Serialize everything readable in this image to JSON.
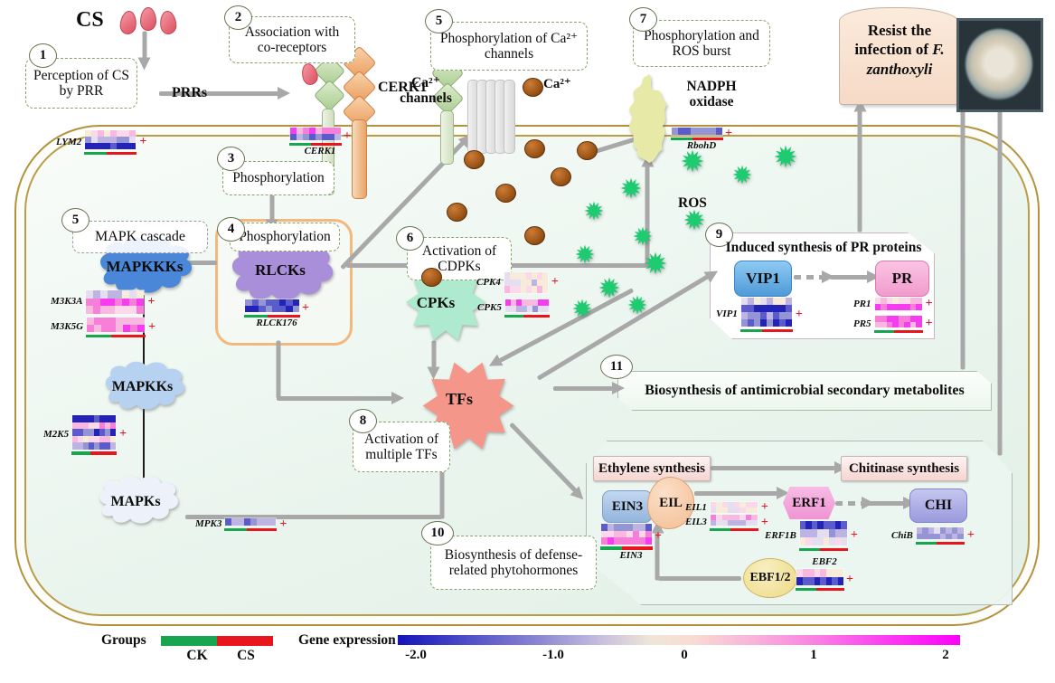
{
  "figure": {
    "cs": "CS",
    "prrs": "PRRs",
    "cerk1": "CERK1",
    "ca_channels_l1": "Ca²⁺",
    "ca_channels_l2": "channels",
    "ca_ion": "Ca²⁺",
    "nadph_l1": "NADPH",
    "nadph_l2": "oxidase",
    "ros": "ROS",
    "mapkkks": "MAPKKKs",
    "mapkks": "MAPKKs",
    "mapks": "MAPKs",
    "rlcks": "RLCKs",
    "cpks": "CPKs",
    "tfs": "TFs",
    "vip1": "VIP1",
    "pr": "PR",
    "ethylene": "Ethylene synthesis",
    "chitinase": "Chitinase synthesis",
    "ein3": "EIN3",
    "eil": "EIL",
    "erf1": "ERF1",
    "chi": "CHI",
    "ebf12": "EBF1/2",
    "resist_prefix": "Resist the infection of ",
    "resist_species": "F. zanthoxyli"
  },
  "steps": {
    "s1": {
      "num": "1",
      "text": "Perception of CS by PRR"
    },
    "s2": {
      "num": "2",
      "text": "Association with co-receptors"
    },
    "s3": {
      "num": "3",
      "text": "Phosphorylation"
    },
    "s4": {
      "num": "4",
      "text": "Phosphorylation"
    },
    "s5_mapk": {
      "num": "5",
      "text": "MAPK cascade"
    },
    "s5_ca": {
      "num": "5",
      "text": "Phosphorylation of Ca²⁺ channels"
    },
    "s6": {
      "num": "6",
      "text": "Activation of CDPKs"
    },
    "s7": {
      "num": "7",
      "text": "Phosphorylation and ROS burst"
    },
    "s8": {
      "num": "8",
      "text": "Activation of multiple TFs"
    },
    "s9": {
      "num": "9",
      "text": "Induced synthesis of PR proteins"
    },
    "s10": {
      "num": "10",
      "text": "Biosynthesis of defense-related phytohormones"
    },
    "s11": {
      "num": "11",
      "text": "Biosynthesis of antimicrobial secondary metabolites"
    }
  },
  "genes": {
    "lym2": {
      "label": "LYM2"
    },
    "cerk1": {
      "label": "CERK1"
    },
    "rlck176": {
      "label": "RLCK176"
    },
    "m3k3a": {
      "label": "M3K3A"
    },
    "m3k5g": {
      "label": "M3K5G"
    },
    "m2k5": {
      "label": "M2K5"
    },
    "mpk3": {
      "label": "MPK3"
    },
    "cpk4": {
      "label": "CPK4"
    },
    "cpk5": {
      "label": "CPK5"
    },
    "rbohd": {
      "label": "RbohD"
    },
    "vip1": {
      "label": "VIP1"
    },
    "pr1": {
      "label": "PR1"
    },
    "pr5": {
      "label": "PR5"
    },
    "ein3": {
      "label": "EIN3"
    },
    "eil1": {
      "label": "EIL1"
    },
    "eil3": {
      "label": "EIL3"
    },
    "erf1b": {
      "label": "ERF1B"
    },
    "ebf2": {
      "label": "EBF2"
    },
    "chib": {
      "label": "ChiB"
    }
  },
  "marks": {
    "plus": "+"
  },
  "legend": {
    "groups_label": "Groups",
    "ck": "CK",
    "cs": "CS",
    "ck_color": "#17a64d",
    "cs_color": "#e9151d",
    "gene_expression_label": "Gene expression",
    "ticks": [
      "-2.0",
      "-1.0",
      "0",
      "1",
      "2"
    ]
  },
  "heatmap_palette": [
    "#2323b8",
    "#5b5bcc",
    "#9595d6",
    "#beb4e4",
    "#e4def0",
    "#f6ecd9",
    "#fbd9ea",
    "#f9b8e0",
    "#f77fd8",
    "#f53cee"
  ]
}
